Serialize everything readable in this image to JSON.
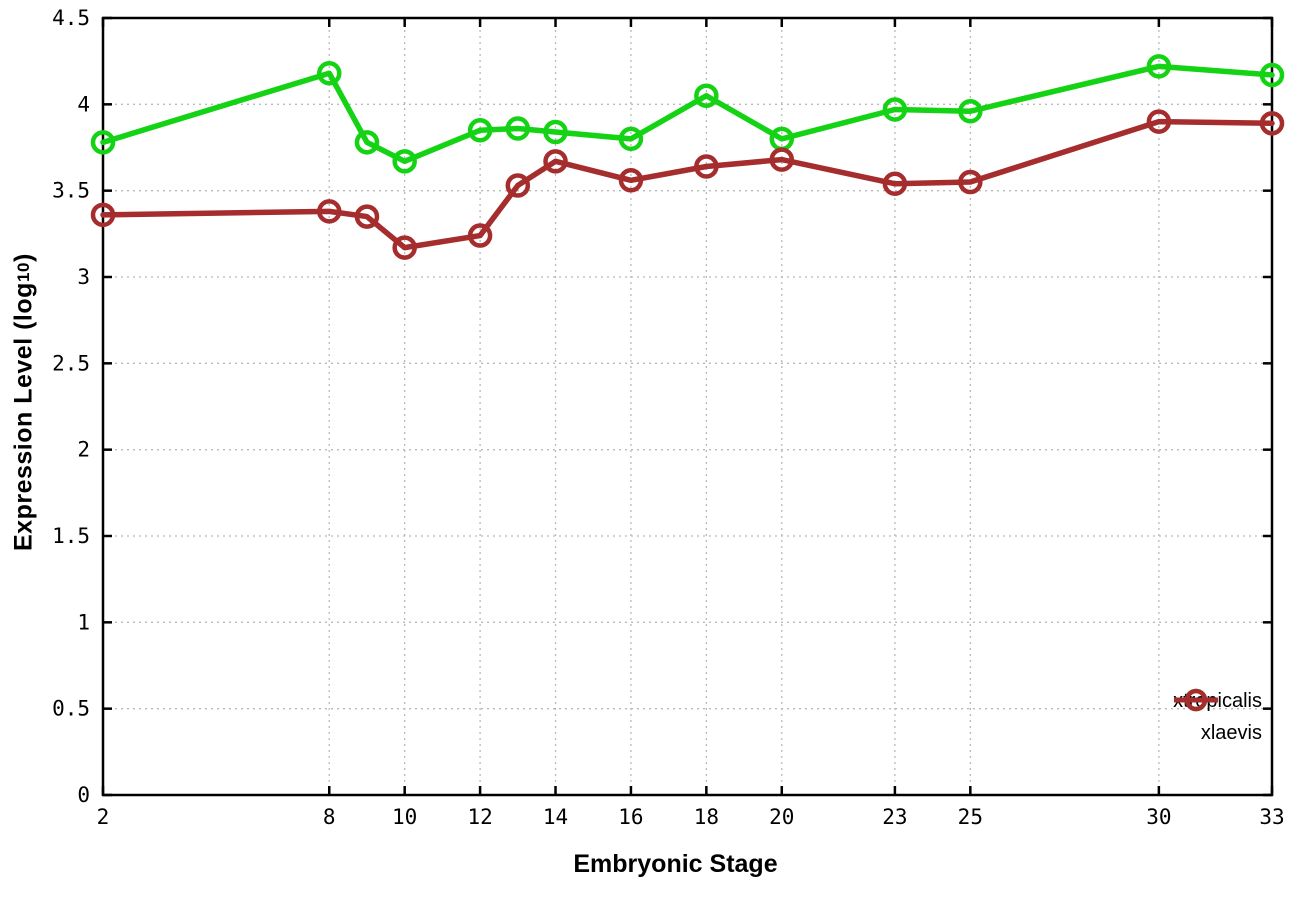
{
  "figure": {
    "background": "#ffffff",
    "border_color": "#000000",
    "grid_color": "#b9b9b9",
    "tick_label_color": "#000000"
  },
  "chart_data": {
    "type": "line",
    "title": "",
    "xlabel": "Embryonic Stage",
    "ylabel": "Expression Level (log10)",
    "ylabel_parts": {
      "pre": "Expression Level (log",
      "sub": "10",
      "post": ")"
    },
    "xlim": [
      2,
      33
    ],
    "ylim": [
      0,
      4.5
    ],
    "x_ticks": [
      2,
      8,
      10,
      12,
      14,
      16,
      18,
      20,
      23,
      25,
      30,
      33
    ],
    "x_tick_labels": [
      "2",
      "8",
      "10",
      "12",
      "14",
      "16",
      "18",
      "20",
      "23",
      "25",
      "30",
      "33"
    ],
    "y_ticks": [
      0,
      0.5,
      1,
      1.5,
      2,
      2.5,
      3,
      3.5,
      4,
      4.5
    ],
    "y_tick_labels": [
      "0",
      "0.5",
      "1",
      "1.5",
      "2",
      "2.5",
      "3",
      "3.5",
      "4",
      "4.5"
    ],
    "grid": true,
    "legend_position": "bottom-right",
    "x": [
      2,
      8,
      9,
      10,
      12,
      13,
      14,
      16,
      18,
      20,
      23,
      25,
      30,
      33
    ],
    "series": [
      {
        "name": "xtropicalis",
        "color": "#14d314",
        "marker": "open-circle",
        "values": [
          3.78,
          4.18,
          3.78,
          3.67,
          3.85,
          3.86,
          3.84,
          3.8,
          4.05,
          3.8,
          3.97,
          3.96,
          4.22,
          4.17
        ]
      },
      {
        "name": "xlaevis",
        "color": "#a52d2d",
        "marker": "open-circle",
        "values": [
          3.36,
          3.38,
          3.35,
          3.17,
          3.24,
          3.53,
          3.67,
          3.56,
          3.64,
          3.68,
          3.54,
          3.55,
          3.9,
          3.89
        ]
      }
    ]
  }
}
